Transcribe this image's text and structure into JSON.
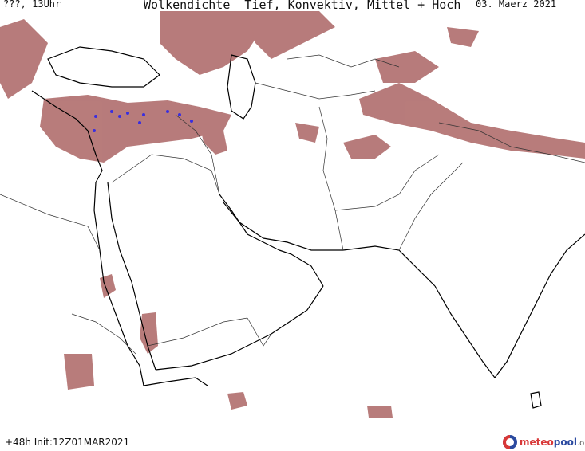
{
  "header": {
    "left": "???, 13Uhr",
    "title": "Wolkendichte  Tief, Konvektiv, Mittel + Hoch",
    "date": "03. Maerz 2021"
  },
  "footer": {
    "run_info": "+48h Init:12Z01MAR2021"
  },
  "logo": {
    "part1": "meteo",
    "part2": "pool",
    "part3": ".org"
  },
  "colors": {
    "cloud": "#a0504f",
    "convective": "#3a2ee0",
    "coast": "#000000",
    "border": "#333333"
  }
}
